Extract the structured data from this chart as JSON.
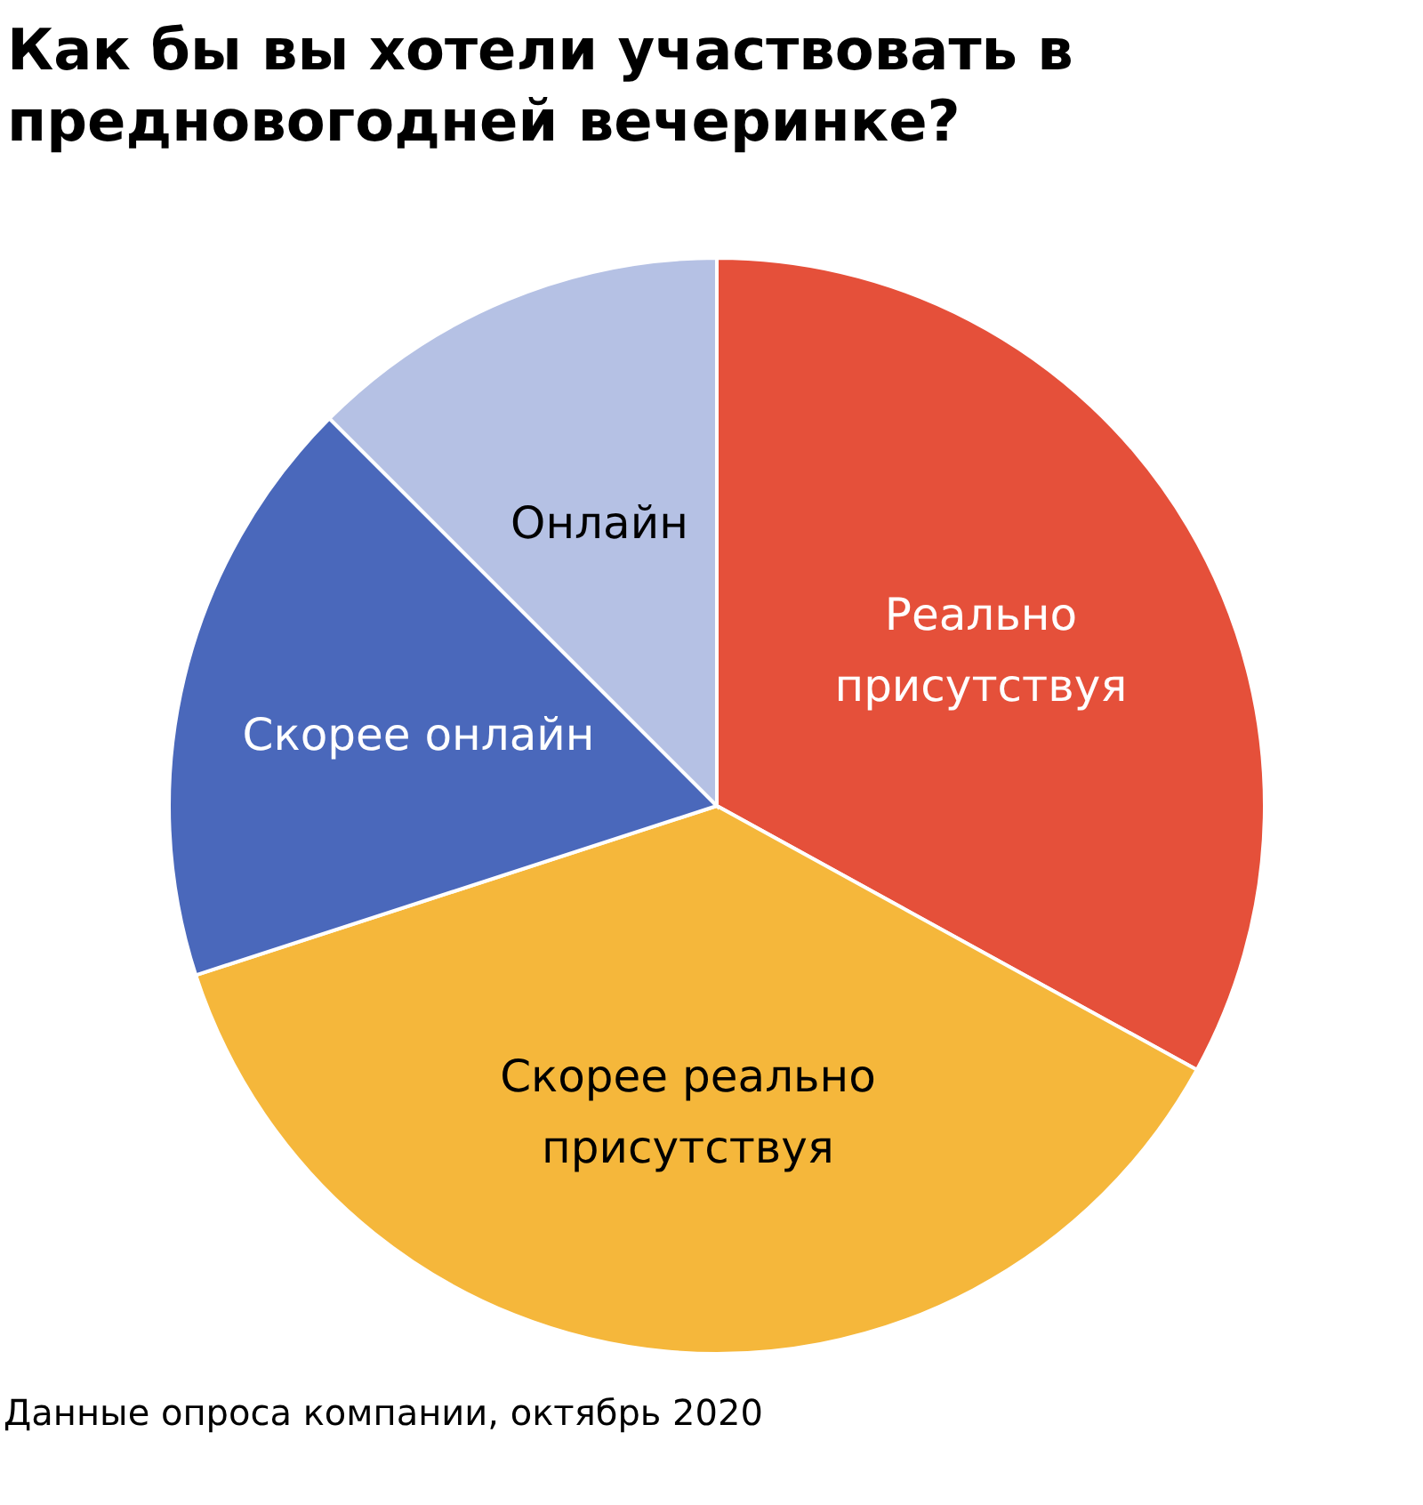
{
  "chart_data": {
    "type": "pie",
    "title": "Как бы вы хотели участвовать в предновогодней вечеринке?",
    "categories": [
      "Реально присутствуя",
      "Скорее реально присутствуя",
      "Скорее онлайн",
      "Онлайн"
    ],
    "values": [
      33,
      37,
      17.5,
      12.5
    ],
    "colors": [
      "#e5503a",
      "#f5b73b",
      "#4a68bb",
      "#b5c1e4"
    ],
    "annotations": [
      "Данные опроса компании, октябрь 2020"
    ]
  }
}
